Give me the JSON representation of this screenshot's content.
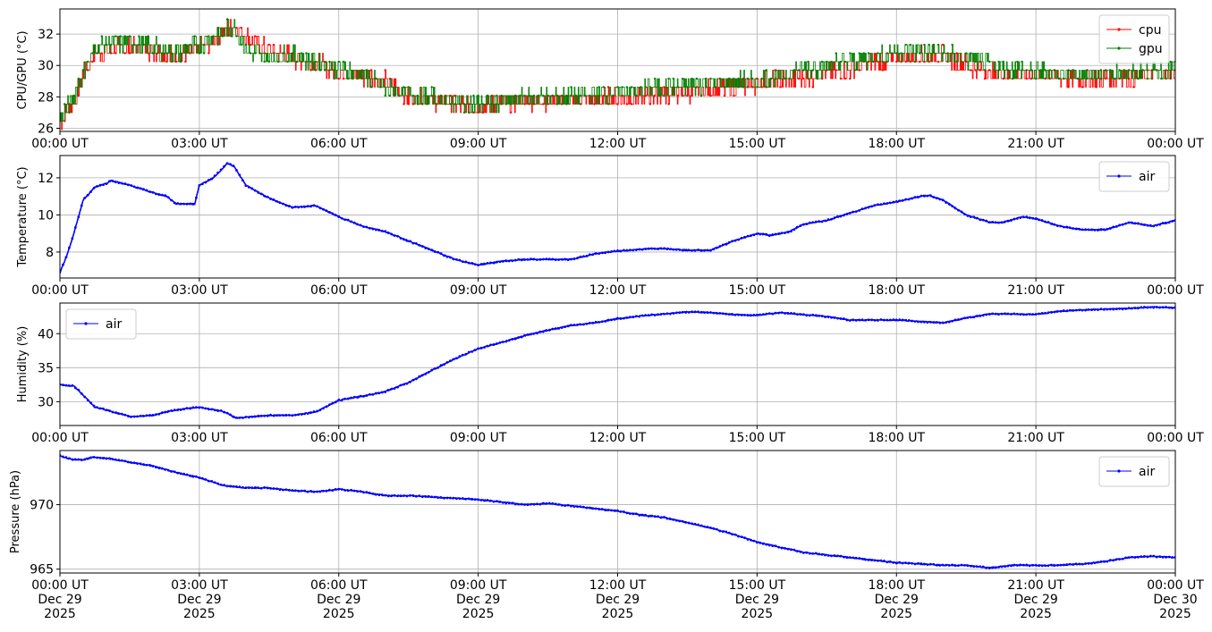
{
  "chart_data": [
    {
      "type": "line",
      "ylabel": "CPU/GPU (°C)",
      "yticks": [
        26,
        28,
        30,
        32
      ],
      "ylim": [
        25.8,
        33.6
      ],
      "x_ticks": [
        "00:00 UT",
        "03:00 UT",
        "06:00 UT",
        "09:00 UT",
        "12:00 UT",
        "15:00 UT",
        "18:00 UT",
        "21:00 UT",
        "00:00 UT"
      ],
      "xlim_hours": [
        0,
        24
      ],
      "grid": true,
      "legend": "top-right",
      "series": [
        {
          "name": "cpu",
          "color": "#ff0000",
          "x_hours": [
            0,
            0.25,
            0.5,
            0.75,
            1,
            1.5,
            2,
            2.5,
            3,
            3.5,
            3.75,
            4,
            4.5,
            5,
            5.5,
            6,
            6.5,
            7,
            7.5,
            8,
            9,
            10,
            11,
            12,
            13,
            14,
            15,
            16,
            17,
            18,
            19,
            20,
            21,
            22,
            23,
            24
          ],
          "values": [
            26.3,
            27.5,
            29.3,
            30.8,
            31.0,
            31.2,
            31.0,
            30.5,
            31.0,
            32.1,
            32.7,
            31.8,
            31.0,
            30.5,
            30.2,
            29.5,
            29.3,
            29.0,
            28.0,
            27.8,
            27.3,
            27.8,
            27.8,
            27.9,
            28.2,
            28.4,
            28.9,
            29.2,
            29.8,
            30.5,
            30.6,
            29.5,
            29.4,
            29.2,
            29.3,
            29.5
          ]
        },
        {
          "name": "gpu",
          "color": "#008000",
          "x_hours": [
            0,
            0.25,
            0.5,
            0.75,
            1,
            1.5,
            2,
            2.5,
            3,
            3.5,
            3.75,
            4,
            4.5,
            5,
            5.5,
            6,
            6.5,
            7,
            7.5,
            8,
            9,
            10,
            11,
            12,
            13,
            14,
            15,
            16,
            17,
            18,
            19,
            20,
            21,
            22,
            23,
            24
          ],
          "values": [
            26.6,
            27.7,
            29.6,
            31.1,
            31.4,
            31.5,
            31.2,
            30.8,
            31.3,
            32.2,
            32.5,
            31.0,
            30.5,
            30.6,
            30.3,
            29.8,
            29.5,
            28.5,
            28.3,
            27.9,
            27.5,
            27.9,
            28.0,
            28.3,
            28.6,
            28.9,
            29.0,
            29.8,
            30.2,
            30.9,
            30.8,
            30.0,
            29.6,
            29.4,
            29.5,
            29.7
          ]
        }
      ]
    },
    {
      "type": "line",
      "ylabel": "Temperature (°C)",
      "yticks": [
        8,
        10,
        12
      ],
      "ylim": [
        6.6,
        13.2
      ],
      "x_ticks": [
        "00:00 UT",
        "03:00 UT",
        "06:00 UT",
        "09:00 UT",
        "12:00 UT",
        "15:00 UT",
        "18:00 UT",
        "21:00 UT",
        "00:00 UT"
      ],
      "xlim_hours": [
        0,
        24
      ],
      "grid": true,
      "legend": "top-right",
      "series": [
        {
          "name": "air",
          "color": "#0000ff",
          "x_hours": [
            0,
            0.15,
            0.3,
            0.5,
            0.75,
            1.0,
            1.1,
            1.5,
            2.0,
            2.3,
            2.5,
            2.9,
            3.0,
            3.3,
            3.5,
            3.6,
            3.75,
            4.0,
            4.5,
            5.0,
            5.5,
            6.0,
            6.5,
            7.0,
            7.5,
            8.0,
            8.5,
            9.0,
            9.5,
            10.0,
            10.5,
            11.0,
            11.5,
            12.0,
            12.5,
            13.0,
            13.5,
            14.0,
            14.5,
            15.0,
            15.3,
            15.7,
            16.0,
            16.5,
            17.0,
            17.5,
            18.0,
            18.5,
            18.7,
            19.0,
            19.5,
            20.0,
            20.3,
            20.7,
            21.0,
            21.5,
            22.0,
            22.5,
            23.0,
            23.5,
            24.0
          ],
          "values": [
            6.9,
            7.8,
            9.0,
            10.8,
            11.5,
            11.7,
            11.85,
            11.6,
            11.2,
            11.0,
            10.6,
            10.6,
            11.6,
            12.0,
            12.5,
            12.8,
            12.6,
            11.6,
            10.9,
            10.4,
            10.5,
            9.9,
            9.4,
            9.1,
            8.6,
            8.1,
            7.6,
            7.3,
            7.5,
            7.6,
            7.6,
            7.6,
            7.9,
            8.05,
            8.15,
            8.2,
            8.1,
            8.1,
            8.6,
            9.0,
            8.9,
            9.1,
            9.5,
            9.7,
            10.1,
            10.5,
            10.7,
            11.0,
            11.05,
            10.8,
            10.0,
            9.6,
            9.6,
            9.9,
            9.8,
            9.4,
            9.2,
            9.2,
            9.6,
            9.4,
            9.7
          ]
        }
      ]
    },
    {
      "type": "line",
      "ylabel": "Humidity (%)",
      "yticks": [
        30,
        35,
        40
      ],
      "ylim": [
        26.5,
        44.5
      ],
      "x_ticks": [
        "00:00 UT",
        "03:00 UT",
        "06:00 UT",
        "09:00 UT",
        "12:00 UT",
        "15:00 UT",
        "18:00 UT",
        "21:00 UT",
        "00:00 UT"
      ],
      "xlim_hours": [
        0,
        24
      ],
      "grid": true,
      "legend": "top-left",
      "series": [
        {
          "name": "air",
          "color": "#0000ff",
          "x_hours": [
            0,
            0.3,
            0.5,
            0.75,
            1.0,
            1.5,
            2.0,
            2.5,
            3.0,
            3.5,
            3.8,
            4.0,
            4.5,
            5.0,
            5.5,
            6.0,
            6.5,
            7.0,
            7.5,
            8.0,
            8.5,
            9.0,
            9.5,
            10.0,
            10.5,
            11.0,
            11.5,
            12.0,
            12.5,
            13.0,
            13.5,
            14.0,
            14.5,
            15.0,
            15.5,
            16.0,
            16.5,
            17.0,
            17.5,
            18.0,
            18.5,
            19.0,
            19.5,
            20.0,
            20.5,
            21.0,
            21.5,
            22.0,
            22.5,
            23.0,
            23.5,
            24.0
          ],
          "values": [
            32.5,
            32.3,
            31.0,
            29.2,
            28.8,
            27.8,
            28.0,
            28.8,
            29.2,
            28.6,
            27.6,
            27.7,
            28.0,
            28.0,
            28.5,
            30.2,
            30.8,
            31.5,
            32.8,
            34.6,
            36.3,
            37.8,
            38.7,
            39.7,
            40.5,
            41.2,
            41.6,
            42.2,
            42.6,
            42.9,
            43.2,
            43.1,
            42.8,
            42.7,
            43.1,
            42.8,
            42.5,
            42.0,
            42.0,
            42.0,
            41.8,
            41.6,
            42.3,
            42.9,
            42.9,
            42.8,
            43.3,
            43.5,
            43.6,
            43.7,
            43.9,
            43.8
          ]
        }
      ]
    },
    {
      "type": "line",
      "ylabel": "Pressure (hPa)",
      "yticks": [
        965,
        970
      ],
      "ylim": [
        964.7,
        974.2
      ],
      "x_ticks_multiline": [
        [
          "00:00 UT",
          "Dec 29",
          "2025"
        ],
        [
          "03:00 UT",
          "Dec 29",
          "2025"
        ],
        [
          "06:00 UT",
          "Dec 29",
          "2025"
        ],
        [
          "09:00 UT",
          "Dec 29",
          "2025"
        ],
        [
          "12:00 UT",
          "Dec 29",
          "2025"
        ],
        [
          "15:00 UT",
          "Dec 29",
          "2025"
        ],
        [
          "18:00 UT",
          "Dec 29",
          "2025"
        ],
        [
          "21:00 UT",
          "Dec 29",
          "2025"
        ],
        [
          "00:00 UT",
          "Dec 30",
          "2025"
        ]
      ],
      "xlim_hours": [
        0,
        24
      ],
      "grid": true,
      "legend": "top-right",
      "series": [
        {
          "name": "air",
          "color": "#0000ff",
          "x_hours": [
            0,
            0.25,
            0.5,
            0.75,
            1.0,
            1.5,
            2.0,
            2.5,
            3.0,
            3.5,
            4.0,
            4.5,
            5.0,
            5.5,
            6.0,
            6.5,
            7.0,
            7.5,
            8.0,
            8.5,
            9.0,
            9.5,
            10.0,
            10.5,
            11.0,
            11.5,
            12.0,
            12.5,
            13.0,
            13.5,
            14.0,
            14.5,
            15.0,
            15.5,
            16.0,
            16.5,
            17.0,
            17.5,
            18.0,
            18.5,
            19.0,
            19.5,
            20.0,
            20.5,
            21.0,
            21.5,
            22.0,
            22.5,
            23.0,
            23.5,
            24.0
          ],
          "values": [
            973.8,
            973.5,
            973.5,
            973.7,
            973.6,
            973.3,
            973.0,
            972.5,
            972.1,
            971.5,
            971.3,
            971.3,
            971.1,
            971.0,
            971.2,
            971.0,
            970.7,
            970.7,
            970.6,
            970.5,
            970.4,
            970.2,
            970.0,
            970.1,
            969.9,
            969.7,
            969.5,
            969.2,
            969.0,
            968.6,
            968.2,
            967.7,
            967.1,
            966.7,
            966.3,
            966.1,
            965.9,
            965.7,
            965.5,
            965.4,
            965.3,
            965.3,
            965.1,
            965.3,
            965.3,
            965.3,
            965.4,
            965.6,
            965.9,
            966.0,
            965.9
          ]
        }
      ]
    }
  ]
}
